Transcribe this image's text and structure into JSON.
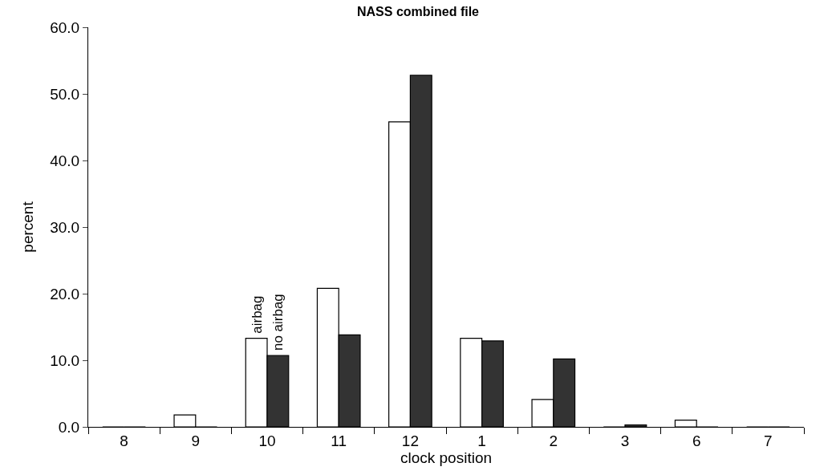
{
  "chart_data": {
    "type": "bar",
    "title": "NASS combined file",
    "xlabel": "clock position",
    "ylabel": "percent",
    "categories": [
      "8",
      "9",
      "10",
      "11",
      "12",
      "1",
      "2",
      "3",
      "6",
      "7"
    ],
    "series": [
      {
        "name": "airbag",
        "color": "#ffffff",
        "values": [
          0,
          1.8,
          13.3,
          20.8,
          45.8,
          13.3,
          4.1,
          0,
          1.0,
          0
        ]
      },
      {
        "name": "no airbag",
        "color": "#333333",
        "values": [
          0,
          0,
          10.7,
          13.8,
          52.8,
          12.9,
          10.2,
          0.3,
          0,
          0
        ]
      }
    ],
    "ylim": [
      0,
      60
    ],
    "yticks": [
      {
        "value": 0,
        "label": "0.0"
      },
      {
        "value": 10,
        "label": "10.0"
      },
      {
        "value": 20,
        "label": "20.0"
      },
      {
        "value": 30,
        "label": "30.0"
      },
      {
        "value": 40,
        "label": "40.0"
      },
      {
        "value": 50,
        "label": "50.0"
      },
      {
        "value": 60,
        "label": "60.0"
      }
    ],
    "legend": false
  }
}
